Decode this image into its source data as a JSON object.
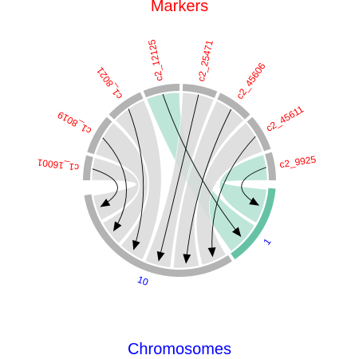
{
  "titles": {
    "top": "Markers",
    "bottom": "Chromosomes"
  },
  "colors": {
    "label_top": "#ff0000",
    "label_bottom": "#0000ff",
    "segment_gray": "#b3b3b3",
    "segment_green": "#66c2a5",
    "link_gray": "#d9d9d9",
    "link_green": "#b2e2d2",
    "arrow": "#000000"
  },
  "markers": [
    {
      "id": "c1_16001"
    },
    {
      "id": "c1_8019"
    },
    {
      "id": "c1_8021"
    },
    {
      "id": "c2_12125"
    },
    {
      "id": "c2_25471"
    },
    {
      "id": "c2_45606"
    },
    {
      "id": "c2_45611"
    },
    {
      "id": "c2_9925"
    }
  ],
  "chromosomes": [
    {
      "id": "10"
    },
    {
      "id": "1"
    }
  ],
  "links": [
    {
      "from": "c1_16001",
      "to": "10",
      "color": "gray"
    },
    {
      "from": "c1_8019",
      "to": "10",
      "color": "gray"
    },
    {
      "from": "c1_8021",
      "to": "10",
      "color": "gray"
    },
    {
      "from": "c2_12125",
      "to": "1",
      "color": "green"
    },
    {
      "from": "c2_25471",
      "to": "10",
      "color": "gray"
    },
    {
      "from": "c2_45606",
      "to": "10",
      "color": "gray"
    },
    {
      "from": "c2_45611",
      "to": "10",
      "color": "gray"
    },
    {
      "from": "c2_9925",
      "to": "1",
      "color": "green"
    }
  ]
}
